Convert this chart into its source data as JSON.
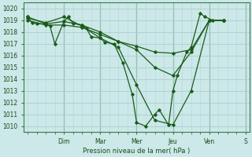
{
  "background_color": "#cce8e8",
  "grid_major_color": "#aacece",
  "grid_minor_color": "#c8dede",
  "line_color": "#1a5c1a",
  "xlabel": "Pression niveau de la mer( hPa )",
  "ylim": [
    1009.5,
    1020.5
  ],
  "xlim": [
    -0.1,
    6.1
  ],
  "yticks": [
    1010,
    1011,
    1012,
    1013,
    1014,
    1015,
    1016,
    1017,
    1018,
    1019,
    1020
  ],
  "day_labels": [
    "Dim",
    "Mar",
    "Mer",
    "Jeu",
    "Ven",
    "S"
  ],
  "day_positions": [
    1.0,
    2.0,
    3.0,
    4.0,
    5.0,
    6.0
  ],
  "series": [
    {
      "x": [
        0.0,
        0.12,
        0.25,
        0.5,
        0.62,
        0.75,
        1.0,
        1.12,
        1.25,
        1.5,
        1.62,
        1.75,
        2.0,
        2.12,
        2.38,
        2.62,
        2.88,
        3.0,
        3.25,
        3.5,
        3.62,
        3.88,
        4.0,
        4.12,
        4.38,
        4.5,
        4.75,
        4.88,
        5.1,
        5.4
      ],
      "y": [
        1019.3,
        1018.8,
        1018.7,
        1018.7,
        1018.5,
        1017.0,
        1018.9,
        1019.3,
        1018.75,
        1018.6,
        1018.3,
        1017.6,
        1017.5,
        1017.15,
        1017.0,
        1015.4,
        1012.7,
        1010.3,
        1010.0,
        1011.0,
        1011.4,
        1010.1,
        1013.0,
        1014.3,
        1016.3,
        1016.7,
        1019.6,
        1019.3,
        1019.0,
        1019.0
      ]
    },
    {
      "x": [
        0.0,
        0.5,
        1.0,
        1.5,
        2.0,
        2.5,
        3.0,
        3.5,
        4.0,
        4.5,
        5.0,
        5.4
      ],
      "y": [
        1019.3,
        1018.7,
        1018.9,
        1018.6,
        1018.0,
        1017.2,
        1016.5,
        1015.0,
        1014.3,
        1016.3,
        1019.0,
        1019.0
      ]
    },
    {
      "x": [
        0.0,
        0.5,
        1.0,
        1.5,
        2.0,
        2.5,
        3.0,
        3.5,
        4.0,
        4.5,
        5.0,
        5.4
      ],
      "y": [
        1019.2,
        1018.8,
        1019.3,
        1018.5,
        1017.5,
        1016.7,
        1013.5,
        1010.5,
        1010.1,
        1013.0,
        1019.0,
        1019.0
      ]
    },
    {
      "x": [
        0.0,
        0.5,
        1.0,
        1.5,
        2.0,
        2.5,
        3.0,
        3.5,
        4.0,
        4.5,
        5.0,
        5.4
      ],
      "y": [
        1019.0,
        1018.6,
        1018.6,
        1018.4,
        1017.8,
        1017.2,
        1016.8,
        1016.3,
        1016.2,
        1016.5,
        1019.0,
        1019.0
      ]
    }
  ],
  "figsize": [
    3.2,
    2.0
  ],
  "dpi": 100
}
